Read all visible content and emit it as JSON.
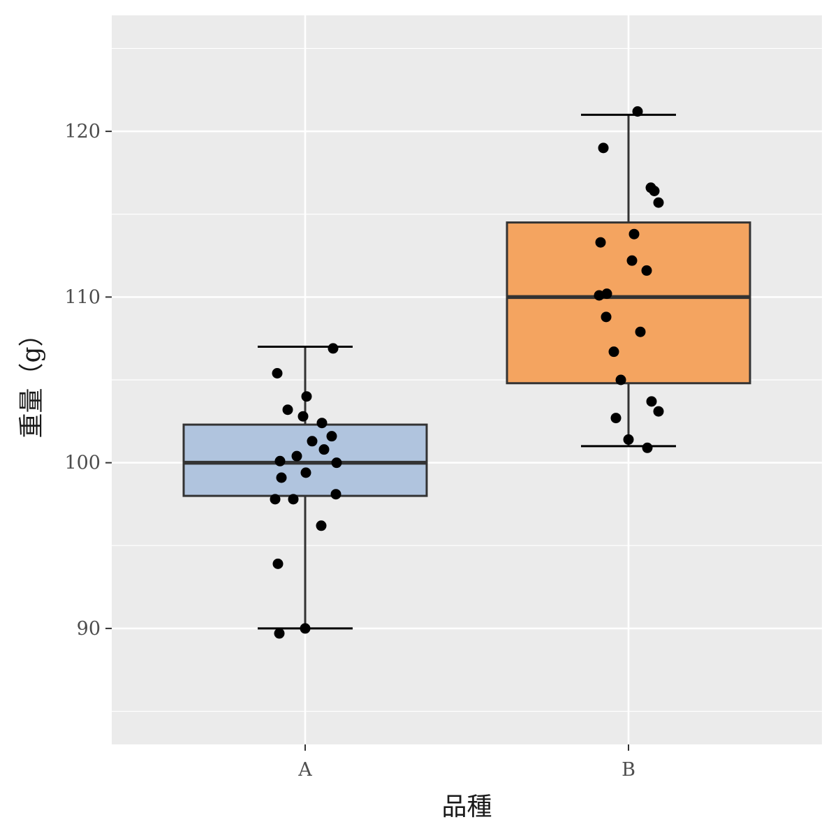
{
  "chart_data": {
    "type": "boxplot",
    "title": "",
    "xlabel": "品種",
    "ylabel": "重量（g）",
    "categories": [
      "A",
      "B"
    ],
    "ylim": [
      83,
      127
    ],
    "yticks": [
      90,
      100,
      110,
      120
    ],
    "grid": true,
    "legend": "none",
    "boxes": [
      {
        "category": "A",
        "whisker_low": 90.0,
        "q1": 98.0,
        "median": 100.0,
        "q3": 102.3,
        "whisker_high": 107.0,
        "fill": "#B0C4DE"
      },
      {
        "category": "B",
        "whisker_low": 101.0,
        "q1": 104.8,
        "median": 110.0,
        "q3": 114.5,
        "whisker_high": 121.0,
        "fill": "#F4A460"
      }
    ],
    "points": [
      {
        "category": "A",
        "values": [
          106.9,
          105.4,
          104.0,
          103.2,
          102.8,
          102.4,
          101.6,
          101.3,
          100.8,
          100.4,
          100.1,
          100.0,
          99.4,
          99.1,
          98.1,
          97.8,
          97.8,
          96.2,
          93.9,
          90.0,
          89.7
        ]
      },
      {
        "category": "B",
        "values": [
          121.2,
          119.0,
          116.6,
          116.4,
          115.7,
          113.8,
          113.3,
          112.2,
          111.6,
          110.2,
          110.1,
          108.8,
          107.9,
          106.7,
          105.0,
          103.7,
          103.1,
          102.7,
          101.4,
          100.9
        ]
      }
    ],
    "colors": {
      "panel_background": "#EBEBEB",
      "grid_line": "#FFFFFF",
      "box_outline": "#333333",
      "point": "#000000"
    }
  }
}
